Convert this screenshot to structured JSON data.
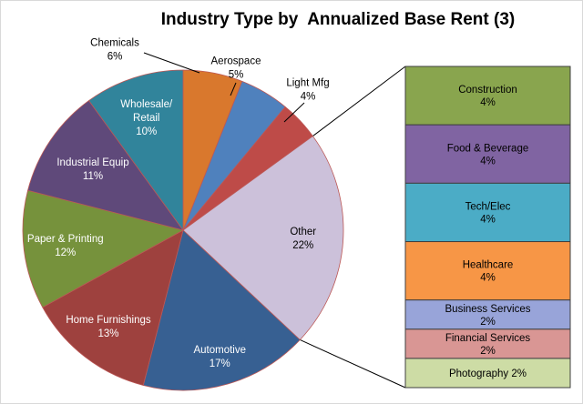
{
  "title": "Industry Type by  Annualized Base Rent (3)",
  "chart_data": {
    "type": "pie",
    "subtype": "bar-of-pie",
    "title": "Industry Type by  Annualized Base Rent (3)",
    "legend": "none",
    "units": "percent of annualized base rent",
    "pie_slices": [
      {
        "name": "Chemicals",
        "value": 6,
        "pct": "6%",
        "color": "#D9782D",
        "label": "outside",
        "label_lines": [
          "Chemicals",
          "6%"
        ],
        "label_color": "#000000",
        "label_x": 125,
        "label_y": 53,
        "leader": [
          157,
          57,
          218,
          79
        ]
      },
      {
        "name": "Aerospace",
        "value": 5,
        "pct": "5%",
        "color": "#4F81BD",
        "label": "outside",
        "label_lines": [
          "Aerospace",
          "5%"
        ],
        "label_color": "#000000",
        "label_x": 258,
        "label_y": 73,
        "leader": [
          258,
          90,
          252,
          104
        ]
      },
      {
        "name": "Light Mfg",
        "value": 4,
        "pct": "4%",
        "color": "#BE4B48",
        "label": "outside",
        "label_lines": [
          "Light Mfg",
          "4%"
        ],
        "label_color": "#000000",
        "label_x": 337,
        "label_y": 97,
        "leader": [
          333,
          112,
          311,
          133
        ]
      },
      {
        "name": "Other",
        "value": 22,
        "pct": "22%",
        "color": "#CCC1DA",
        "label": "inside",
        "label_lines": [
          "Other",
          "22%"
        ],
        "label_color": "#000000",
        "label_r": 0.75,
        "breakout": true
      },
      {
        "name": "Automotive",
        "value": 17,
        "pct": "17%",
        "color": "#376092",
        "label": "inside",
        "label_lines": [
          "Automotive",
          "17%"
        ],
        "label_color": "#FFFFFF",
        "label_r": 0.82
      },
      {
        "name": "Home Furnishings",
        "value": 13,
        "pct": "13%",
        "color": "#9E413E",
        "label": "inside",
        "label_lines": [
          "Home  Furnishings",
          "13%"
        ],
        "label_color": "#FFFFFF",
        "label_r": 0.76
      },
      {
        "name": "Paper & Printing",
        "value": 12,
        "pct": "12%",
        "color": "#76923C",
        "label": "inside",
        "label_lines": [
          "Paper & Printing",
          "12%"
        ],
        "label_color": "#FFFFFF",
        "label_r": 0.74
      },
      {
        "name": "Industrial Equip",
        "value": 11,
        "pct": "11%",
        "color": "#5F497A",
        "label": "inside",
        "label_lines": [
          "Industrial Equip",
          "11%"
        ],
        "label_color": "#FFFFFF",
        "label_r": 0.68
      },
      {
        "name": "Wholesale/Retail",
        "value": 10,
        "pct": "10%",
        "color": "#31849B",
        "label": "inside",
        "label_lines": [
          "Wholesale/",
          "Retail",
          "10%"
        ],
        "label_color": "#FFFFFF",
        "label_r": 0.74
      }
    ],
    "bar_segments": [
      {
        "name": "Construction",
        "value": 4,
        "pct": "4%",
        "color": "#89A54E",
        "label_lines": [
          "Construction",
          "4%"
        ]
      },
      {
        "name": "Food & Beverage",
        "value": 4,
        "pct": "4%",
        "color": "#8064A2",
        "label_lines": [
          "Food & Beverage",
          "4%"
        ]
      },
      {
        "name": "Tech/Elec",
        "value": 4,
        "pct": "4%",
        "color": "#4BACC6",
        "label_lines": [
          "Tech/Elec",
          "4%"
        ]
      },
      {
        "name": "Healthcare",
        "value": 4,
        "pct": "4%",
        "color": "#F79646",
        "label_lines": [
          "Healthcare",
          "4%"
        ]
      },
      {
        "name": "Business Services",
        "value": 2,
        "pct": "2%",
        "color": "#98A4D9",
        "label_lines": [
          "Business Services",
          "2%"
        ]
      },
      {
        "name": "Financial Services",
        "value": 2,
        "pct": "2%",
        "color": "#D99694",
        "label_lines": [
          "Financial Services",
          "2%"
        ]
      },
      {
        "name": "Photography",
        "value": 2,
        "pct": "2%",
        "color": "#CDDCA5",
        "label_lines": [
          "Photography 2%"
        ]
      }
    ],
    "colors": {
      "pie_border": "#BC5856",
      "bar_border": "#404040",
      "connector": "#000000",
      "leader": "#000000",
      "background": "#FFFFFF",
      "title_color": "#000000"
    }
  }
}
